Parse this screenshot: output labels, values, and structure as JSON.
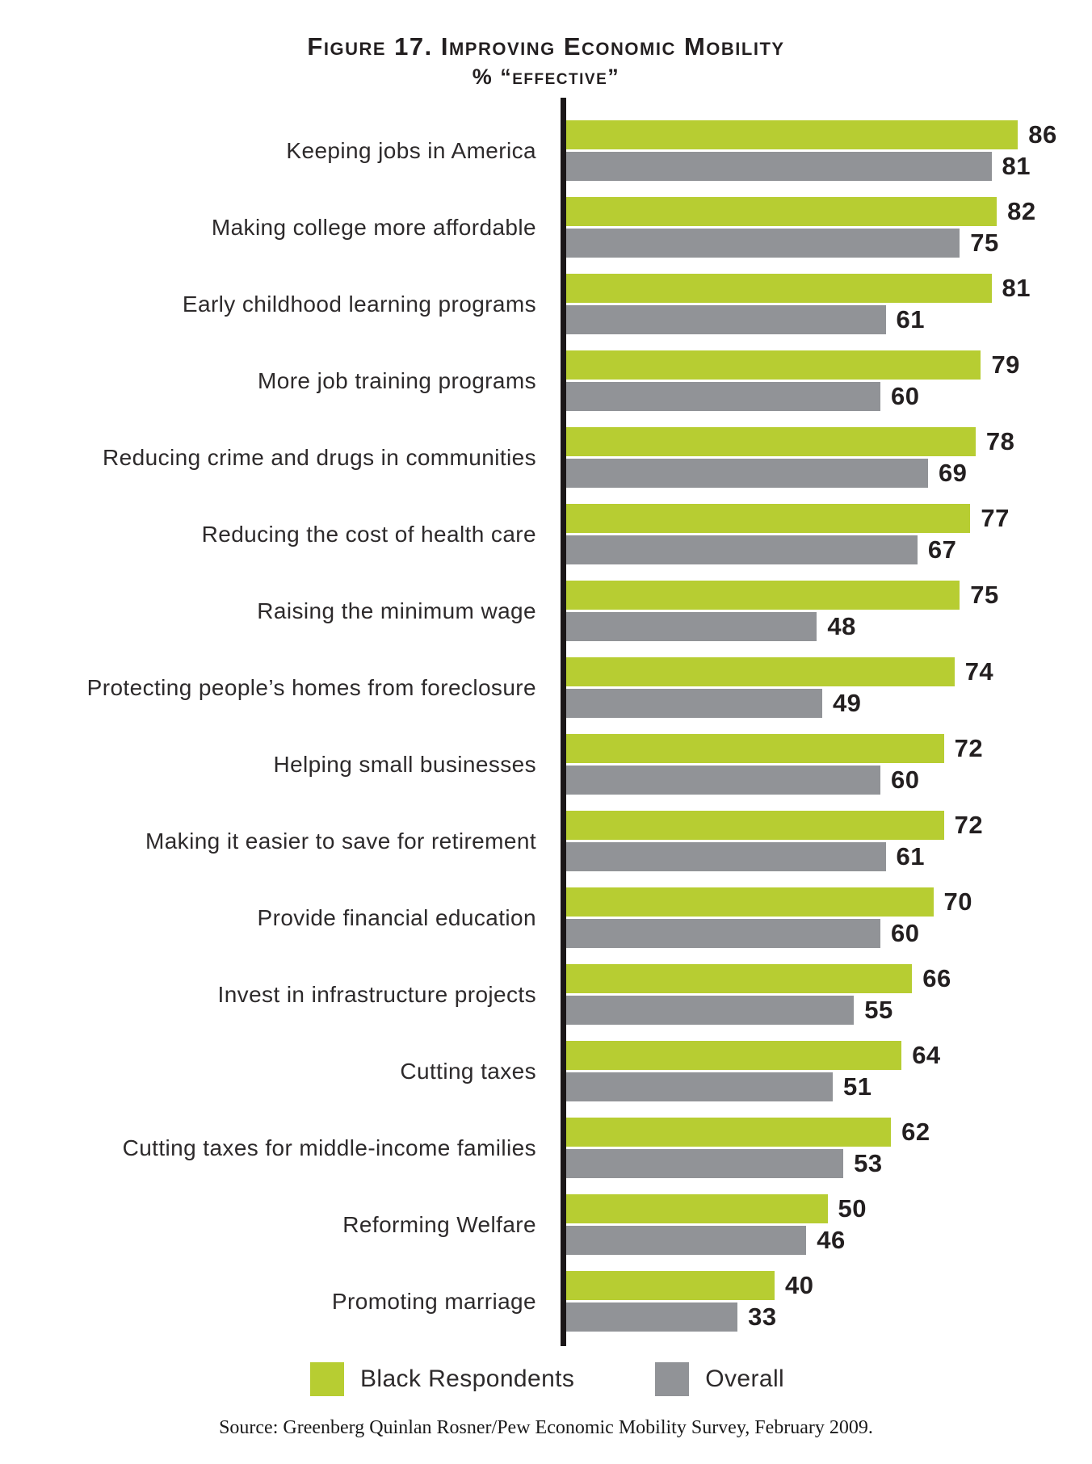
{
  "chart_data": {
    "type": "bar",
    "orientation": "horizontal",
    "title": "Figure 17. Improving Economic Mobility",
    "subtitle": "% “effective”",
    "categories": [
      "Keeping jobs in America",
      "Making college more affordable",
      "Early childhood learning programs",
      "More job training programs",
      "Reducing crime and drugs in communities",
      "Reducing the cost of health care",
      "Raising the minimum wage",
      "Protecting people’s homes from foreclosure",
      "Helping small businesses",
      "Making it easier to save for retirement",
      "Provide financial education",
      "Invest in infrastructure projects",
      "Cutting taxes",
      "Cutting taxes for middle-income families",
      "Reforming Welfare",
      "Promoting marriage"
    ],
    "series": [
      {
        "name": "Black Respondents",
        "color": "#b7cd32",
        "values": [
          86,
          82,
          81,
          79,
          78,
          77,
          75,
          74,
          72,
          72,
          70,
          66,
          64,
          62,
          50,
          40
        ]
      },
      {
        "name": "Overall",
        "color": "#919397",
        "values": [
          81,
          75,
          61,
          60,
          69,
          67,
          48,
          49,
          60,
          61,
          60,
          55,
          51,
          53,
          46,
          33
        ]
      }
    ],
    "xlim": [
      0,
      100
    ],
    "value_labels": true,
    "grid": false,
    "legend_position": "bottom",
    "axis_color": "#1b1718",
    "source": "Source: Greenberg Quinlan Rosner/Pew Economic Mobility Survey, February 2009."
  }
}
